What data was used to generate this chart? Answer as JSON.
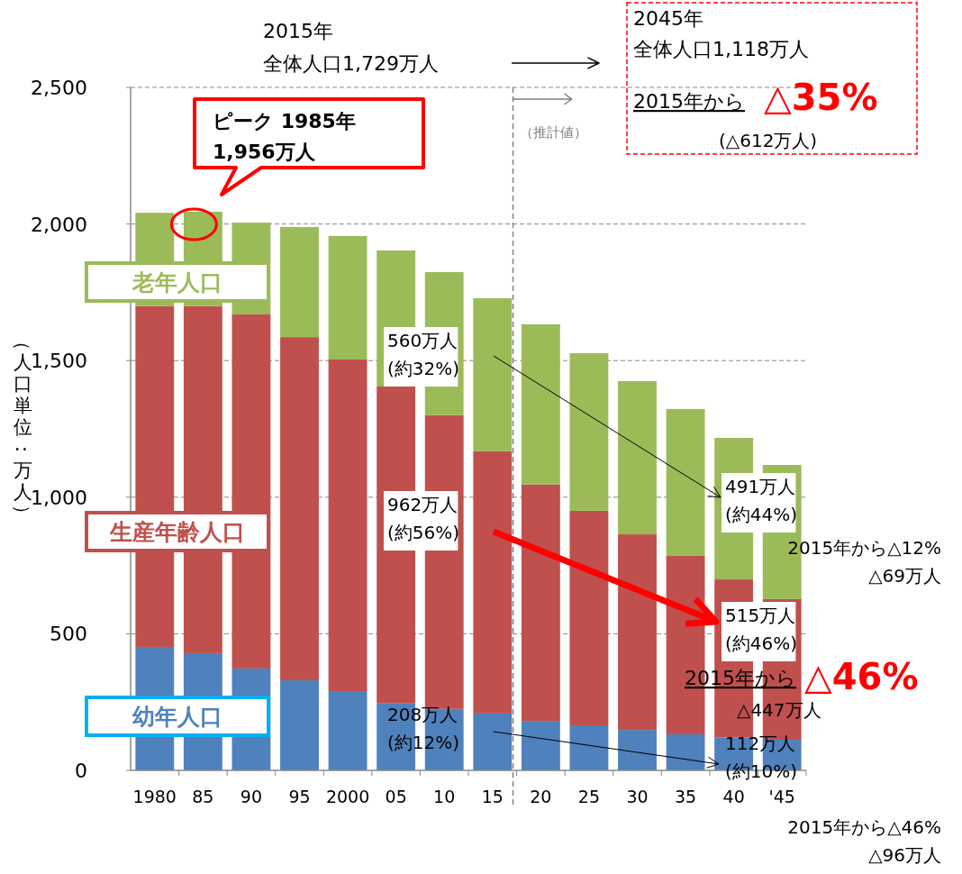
{
  "chart_data": {
    "type": "bar",
    "stacked": true,
    "ylabel": "（人口単位：万人）",
    "categories": [
      "1980",
      "85",
      "90",
      "95",
      "2000",
      "05",
      "10",
      "15",
      "20",
      "25",
      "30",
      "35",
      "40",
      "'45"
    ],
    "series": [
      {
        "name": "幼年人口",
        "color": "#4f81bd",
        "values": [
          452,
          429,
          373,
          330,
          290,
          245,
          225,
          208,
          181,
          165,
          148,
          132,
          120,
          112
        ]
      },
      {
        "name": "生産年齢人口",
        "color": "#c0504d",
        "values": [
          1248,
          1271,
          1296,
          1256,
          1214,
          1160,
          1075,
          960,
          865,
          785,
          716,
          653,
          579,
          515
        ]
      },
      {
        "name": "老年人口",
        "color": "#9bbb59",
        "values": [
          341,
          345,
          336,
          403,
          452,
          498,
          524,
          560,
          587,
          577,
          561,
          538,
          518,
          491
        ]
      }
    ],
    "ylim": [
      0,
      2500
    ],
    "yticks": [
      0,
      {
        "value": 500,
        "label": "500"
      },
      {
        "value": 1000,
        "label": "1,000"
      },
      {
        "value": 1500,
        "label": "1,500"
      },
      {
        "value": 2000,
        "label": "2,000"
      },
      {
        "value": 2500,
        "label": "2,500"
      }
    ],
    "grid": "y",
    "ref_lines": [
      {
        "axis": "x",
        "value": "15",
        "label": "（推計値）",
        "color": "#808080",
        "line_style": "dashed"
      }
    ],
    "annotations": [
      "2015年",
      "全体人口1,729万人",
      "2045年",
      "全体人口1,118万人",
      "2015年から",
      "△35%",
      "(△612万人)",
      {
        "text": "ピーク  1985年\n1,956万人",
        "x": "85",
        "y": 2045
      },
      "560万人\n(約32%)",
      "962万人\n(約56%)",
      "208万人\n(約12%)",
      "491万人\n(約44%)",
      "2015年から△12%\n△69万人",
      "515万人\n(約46%)",
      "2015年から",
      "△46%",
      "△447万人",
      "112万人\n(約10%)",
      "2015年から△46%\n△96万人"
    ]
  }
}
